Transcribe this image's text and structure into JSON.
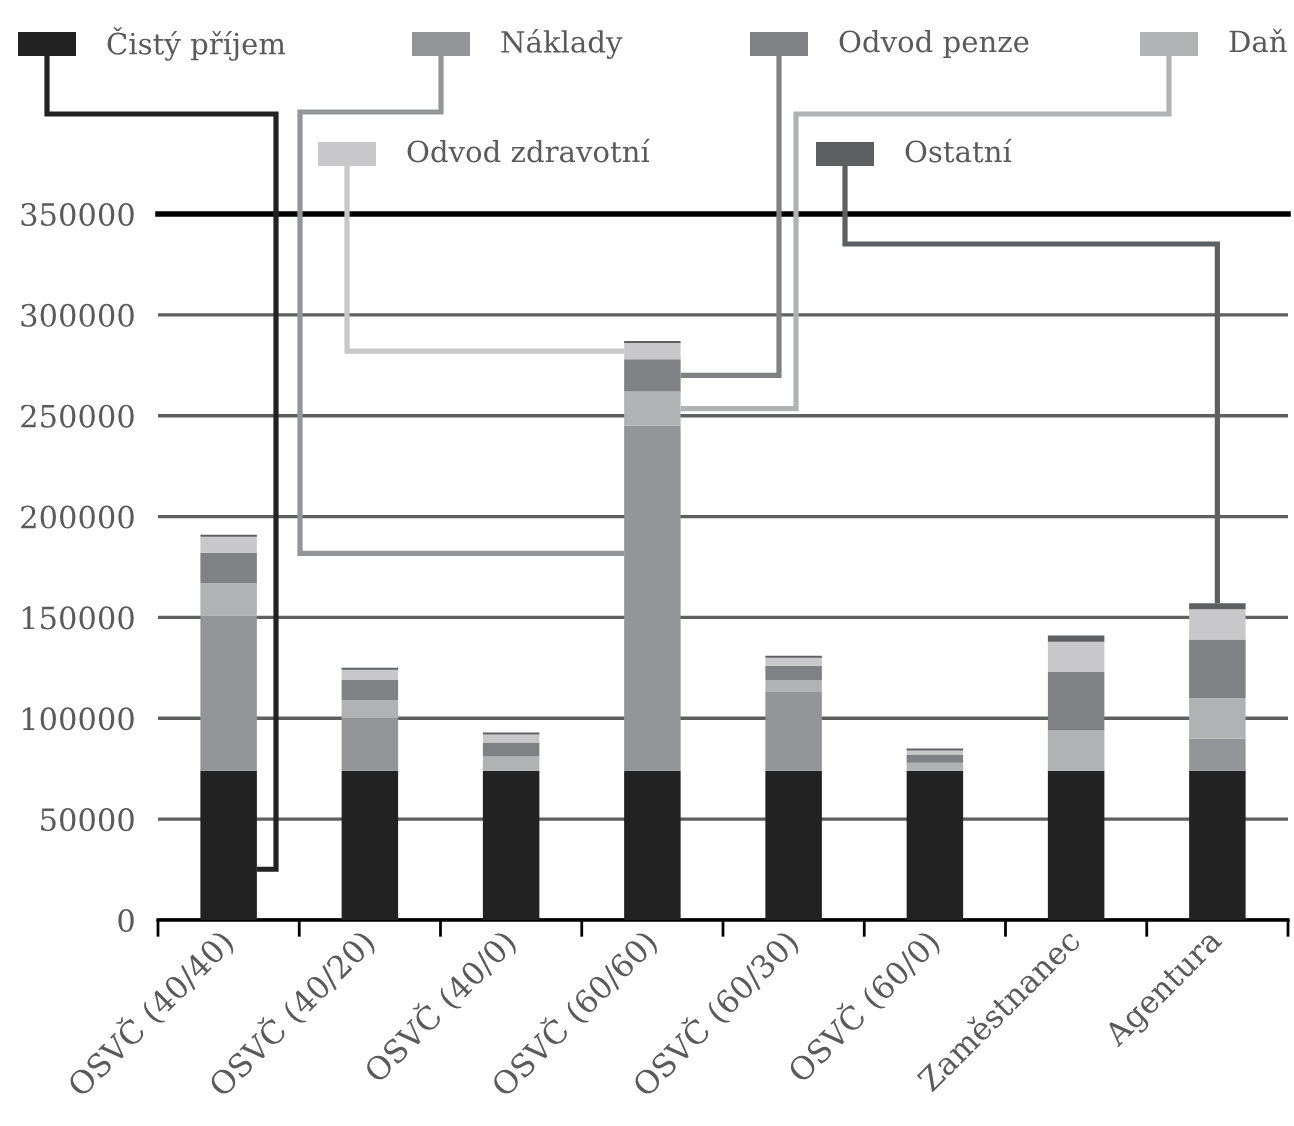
{
  "chart_data": {
    "type": "bar",
    "stacked": true,
    "categories": [
      "OSVČ (40/40)",
      "OSVČ (40/20)",
      "OSVČ (40/0)",
      "OSVČ (60/60)",
      "OSVČ (60/30)",
      "OSVČ (60/0)",
      "Zaměstnanec",
      "Agentura"
    ],
    "series": [
      {
        "name": "Čistý příjem",
        "color": "#222222",
        "values": [
          74000,
          74000,
          74000,
          74000,
          74000,
          74000,
          74000,
          74000
        ]
      },
      {
        "name": "Náklady",
        "color": "#939598",
        "values": [
          77000,
          26000,
          0,
          171000,
          39000,
          0,
          0,
          16000
        ]
      },
      {
        "name": "Daň",
        "color": "#b1b2b4",
        "values": [
          16000,
          9000,
          7000,
          17000,
          6000,
          4000,
          20000,
          20000
        ]
      },
      {
        "name": "Odvod penze",
        "color": "#808184",
        "values": [
          15000,
          10000,
          7000,
          16000,
          7000,
          4000,
          29000,
          29000
        ]
      },
      {
        "name": "Odvod zdravotní",
        "color": "#c8c8ca",
        "values": [
          8000,
          5000,
          4000,
          8000,
          4000,
          2000,
          15000,
          15000
        ]
      },
      {
        "name": "Ostatní",
        "color": "#5e5f61",
        "values": [
          1000,
          1000,
          1000,
          1000,
          1000,
          1000,
          3000,
          3000
        ]
      }
    ],
    "ylim": [
      0,
      350000
    ],
    "yticks": [
      0,
      50000,
      100000,
      150000,
      200000,
      250000,
      300000,
      350000
    ],
    "grid": "y",
    "legend": "top"
  }
}
